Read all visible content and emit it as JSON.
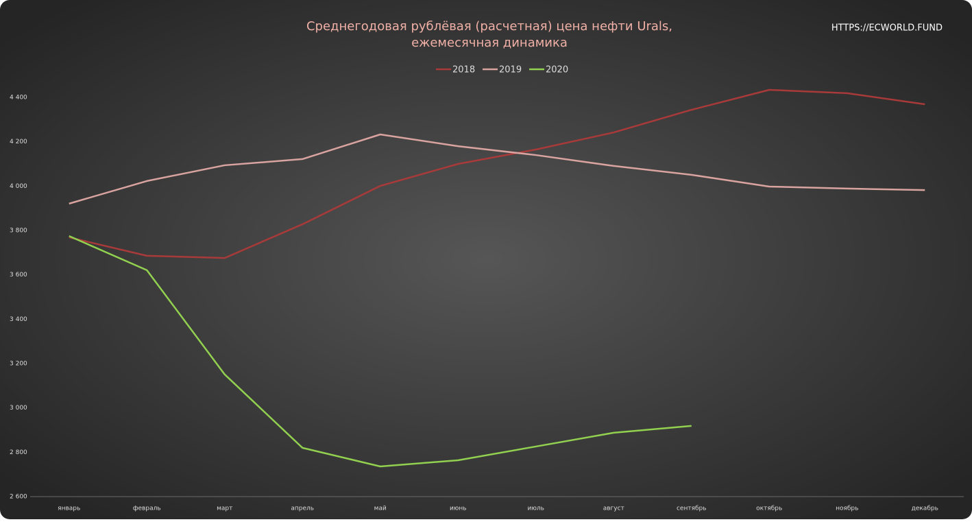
{
  "chart_data": {
    "type": "line",
    "title": [
      "Среднегодовая рублёвая (расчетная) цена нефти Urals,",
      "ежемесячная динамика"
    ],
    "watermark": "HTTPS://ECWORLD.FUND",
    "categories": [
      "январь",
      "февраль",
      "март",
      "апрель",
      "май",
      "июнь",
      "июль",
      "август",
      "сентябрь",
      "октябрь",
      "ноябрь",
      "декабрь"
    ],
    "series": [
      {
        "name": "2018",
        "color": "#a83a3a",
        "values": [
          3769,
          3686,
          3676,
          3828,
          4001,
          4100,
          4165,
          4242,
          4344,
          4434,
          4419,
          4369
        ]
      },
      {
        "name": "2019",
        "color": "#d9a3a0",
        "values": [
          3921,
          4023,
          4094,
          4122,
          4233,
          4180,
          4140,
          4091,
          4051,
          3998,
          3989,
          3982
        ]
      },
      {
        "name": "2020",
        "color": "#92d050",
        "values": [
          3775,
          3621,
          3151,
          2820,
          2736,
          2764,
          2826,
          2888,
          2919,
          null,
          null,
          null
        ]
      }
    ],
    "ylim": [
      2600,
      4400
    ],
    "yticks": [
      {
        "value": 2600,
        "label": "2 600"
      },
      {
        "value": 2800,
        "label": "2 800"
      },
      {
        "value": 3000,
        "label": "3 000"
      },
      {
        "value": 3200,
        "label": "3 200"
      },
      {
        "value": 3400,
        "label": "3 400"
      },
      {
        "value": 3600,
        "label": "3 600"
      },
      {
        "value": 3800,
        "label": "3 800"
      },
      {
        "value": 4000,
        "label": "4 000"
      },
      {
        "value": 4200,
        "label": "4 200"
      },
      {
        "value": 4400,
        "label": "4 400"
      }
    ],
    "legend": "top",
    "grid": false
  }
}
